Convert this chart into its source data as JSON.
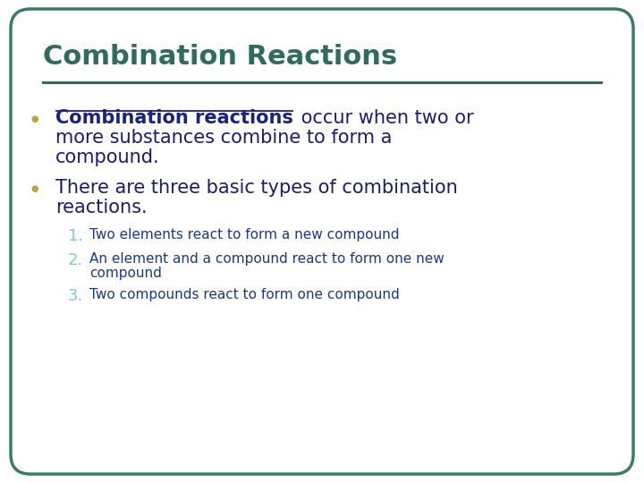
{
  "title": "Combination Reactions",
  "title_color": "#2F6B5E",
  "title_fontsize": 22,
  "separator_color": "#2F6B5E",
  "background_color": "#FFFFFF",
  "border_color": "#3A7A6A",
  "bullet_color": "#B5A642",
  "bullet1_bold_text": "Combination reactions",
  "bullet1_bold_color": "#1A237E",
  "bullet1_rest": " occur when two or",
  "bullet1_line2": "more substances combine to form a",
  "bullet1_line3": "compound.",
  "bullet1_rest_color": "#1C1C6E",
  "bullet2_line1": "There are three basic types of combination",
  "bullet2_line2": "reactions.",
  "bullet2_color": "#1C1C6E",
  "num_color": "#7EC8D0",
  "num1": "1.",
  "item1": "Two elements react to form a new compound",
  "num2": "2.",
  "item2a": "An element and a compound react to form one new",
  "item2b": "compound",
  "num3": "3.",
  "item3": "Two compounds react to form one compound",
  "item_color": "#1A3A7E",
  "item_fontsize": 11,
  "bullet_fontsize": 15,
  "num_fontsize": 13
}
